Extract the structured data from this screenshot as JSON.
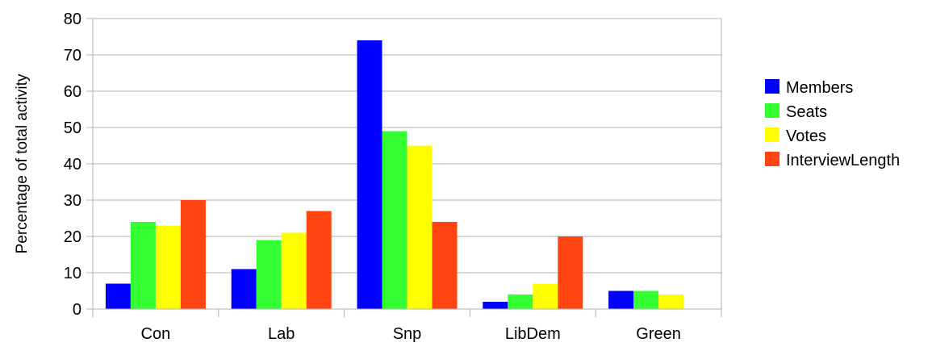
{
  "chart_data": {
    "type": "bar",
    "title": "",
    "xlabel": "",
    "ylabel": "Percentage of total activity",
    "ylim": [
      0,
      80
    ],
    "yticks": [
      0,
      10,
      20,
      30,
      40,
      50,
      60,
      70,
      80
    ],
    "grid": true,
    "legend_position": "right",
    "categories": [
      "Con",
      "Lab",
      "Snp",
      "LibDem",
      "Green"
    ],
    "series": [
      {
        "name": "Members",
        "color": "#0000ff",
        "values": [
          7,
          11,
          74,
          2,
          5
        ]
      },
      {
        "name": "Seats",
        "color": "#33ff33",
        "values": [
          24,
          19,
          49,
          4,
          5
        ]
      },
      {
        "name": "Votes",
        "color": "#ffff00",
        "values": [
          23,
          21,
          45,
          7,
          4
        ]
      },
      {
        "name": "InterviewLength",
        "color": "#ff4411",
        "values": [
          30,
          27,
          24,
          20,
          0
        ]
      }
    ]
  }
}
